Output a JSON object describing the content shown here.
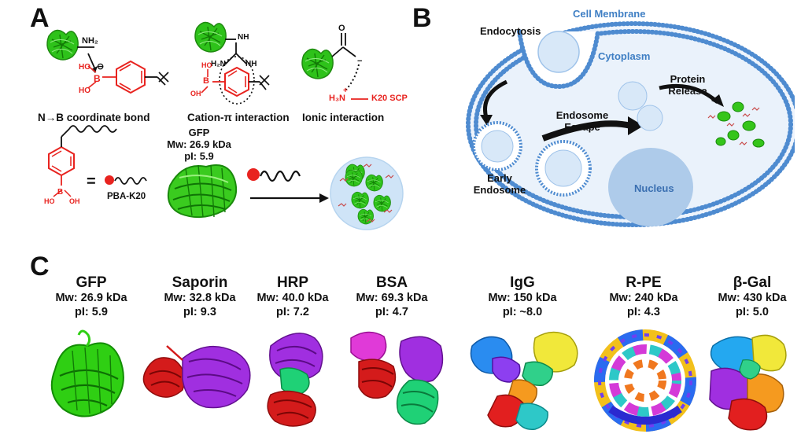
{
  "panel_a": {
    "letter": "A",
    "interactions": [
      {
        "label": "N→B coordinate bond"
      },
      {
        "label": "Cation-π interaction"
      },
      {
        "label": "Ionic interaction"
      }
    ],
    "chem_text": {
      "nh2": "NH₂",
      "ho": "HO",
      "b": "B",
      "b_minus": "⊖",
      "ho2": "HO",
      "nh": "NH",
      "h2n": "H₂N",
      "nh_b": "NH",
      "b2": "B",
      "ho3": "HO",
      "oh3": "OH",
      "o": "O",
      "o_minus": "−",
      "h3n": "H₃N",
      "h3n_plus": "+",
      "k20": "K20 SCP",
      "b4": "B",
      "ho4": "HO",
      "oh4": "OH",
      "equals": "="
    },
    "pba_label": "PBA-K20",
    "gfp": {
      "name": "GFP",
      "mw": "Mw: 26.9 kDa",
      "pi": "pI: 5.9"
    }
  },
  "panel_b": {
    "letter": "B",
    "cell_membrane": "Cell Membrane",
    "cytoplasm": "Cytoplasm",
    "endocytosis": "Endocytosis",
    "early_endosome_1": "Early",
    "early_endosome_2": "Endosome",
    "endosome_escape_1": "Endosome",
    "endosome_escape_2": "Escape",
    "protein_release_1": "Protein",
    "protein_release_2": "Release",
    "nucleus": "Nucleus"
  },
  "panel_c": {
    "letter": "C",
    "proteins": [
      {
        "name": "GFP",
        "mw": "Mw: 26.9 kDa",
        "pi": "pI: 5.9"
      },
      {
        "name": "Saporin",
        "mw": "Mw: 32.8 kDa",
        "pi": "pI: 9.3"
      },
      {
        "name": "HRP",
        "mw": "Mw: 40.0 kDa",
        "pi": "pI: 7.2"
      },
      {
        "name": "BSA",
        "mw": "Mw: 69.3 kDa",
        "pi": "pI: 4.7"
      },
      {
        "name": "IgG",
        "mw": "Mw: 150 kDa",
        "pi": "pI: ~8.0"
      },
      {
        "name": "R-PE",
        "mw": "Mw: 240 kDa",
        "pi": "pI: 4.3"
      },
      {
        "name": "β-Gal",
        "mw": "Mw: 430 kDa",
        "pi": "pI: 5.0"
      }
    ]
  },
  "colors": {
    "protein_green": "#2ec21a",
    "polymer_red": "#e8231f",
    "membrane_blue": "#5b95d3",
    "cytoplasm_fill": "#e9f1fb",
    "nucleus_fill": "#aecbea",
    "text_blue": "#3f7fc4"
  }
}
